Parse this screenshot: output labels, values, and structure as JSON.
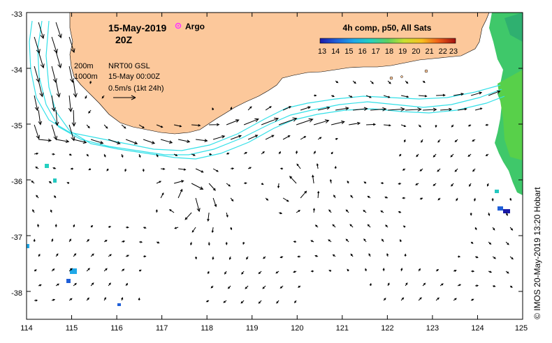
{
  "title": {
    "date": "15-May-2019",
    "time": "20Z",
    "argo_label": "Argo"
  },
  "colorbar": {
    "title": "4h comp, p50, All Sats",
    "ticks": [
      "13",
      "14",
      "15",
      "16",
      "17",
      "18",
      "19",
      "20",
      "21",
      "22",
      "23"
    ],
    "min": 13,
    "max": 23
  },
  "legend": {
    "depth_200": "200m",
    "depth_1000": "1000m",
    "product": "NRT00 GSL",
    "analysis_time": "15-May 00:00Z",
    "speed_scale": "0.5m/s (1kt 24h)"
  },
  "axes": {
    "x_ticks": [
      "114",
      "115",
      "116",
      "117",
      "118",
      "119",
      "120",
      "121",
      "122",
      "123",
      "124",
      "125"
    ],
    "y_ticks": [
      "-33",
      "-34",
      "-35",
      "-36",
      "-37",
      "-38"
    ],
    "lon_range": [
      114,
      125
    ],
    "lat_range": [
      -38.5,
      -33
    ]
  },
  "credit": "© IMOS 20-May-2019 13:20 Hobart",
  "colors": {
    "land": "#fcc89b",
    "isobath": "#33e0e8",
    "argo": "#ff33ff",
    "arrows": "#000000"
  }
}
